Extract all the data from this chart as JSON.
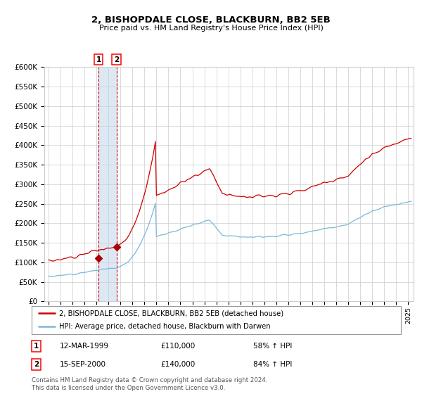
{
  "title": "2, BISHOPDALE CLOSE, BLACKBURN, BB2 5EB",
  "subtitle": "Price paid vs. HM Land Registry's House Price Index (HPI)",
  "legend_label_red": "2, BISHOPDALE CLOSE, BLACKBURN, BB2 5EB (detached house)",
  "legend_label_blue": "HPI: Average price, detached house, Blackburn with Darwen",
  "footnote": "Contains HM Land Registry data © Crown copyright and database right 2024.\nThis data is licensed under the Open Government Licence v3.0.",
  "transaction1_date": "12-MAR-1999",
  "transaction1_price": 110000,
  "transaction1_hpi": "58% ↑ HPI",
  "transaction2_date": "15-SEP-2000",
  "transaction2_price": 140000,
  "transaction2_hpi": "84% ↑ HPI",
  "hpi_color": "#7ab8d9",
  "price_color": "#cc0000",
  "marker_color": "#aa0000",
  "highlight_color": "#dce9f5",
  "dashed_color": "#cc0000",
  "grid_color": "#cccccc",
  "bg_color": "#ffffff",
  "ylim": [
    0,
    600000
  ],
  "ytick_step": 50000,
  "t1_year": 1999,
  "t1_month": 3,
  "t2_year": 2000,
  "t2_month": 9
}
